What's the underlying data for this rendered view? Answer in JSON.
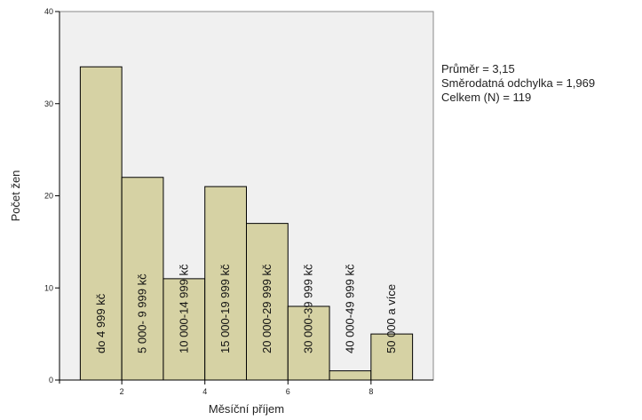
{
  "chart_data": {
    "type": "bar",
    "histogram": true,
    "xlabel": "Měsíční příjem",
    "ylabel": "Počet žen",
    "xlim": [
      0.5,
      9.5
    ],
    "ylim": [
      0,
      40
    ],
    "xticks": [
      "2",
      "4",
      "6",
      "8"
    ],
    "yticks": [
      "0",
      "10",
      "20",
      "30",
      "40"
    ],
    "categories": [
      "do 4 999 kč",
      "5 000- 9 999 kč",
      "10 000-14 999 kč",
      "15 000-19 999 kč",
      "20 000-29 999 kč",
      "30 000-39 999 kč",
      "40 000-49 999 kč",
      "50 000 a více"
    ],
    "bins": [
      [
        1,
        2
      ],
      [
        2,
        3
      ],
      [
        3,
        4
      ],
      [
        4,
        5
      ],
      [
        5,
        6
      ],
      [
        6,
        7
      ],
      [
        7,
        8
      ],
      [
        8,
        9
      ]
    ],
    "values": [
      34,
      22,
      11,
      21,
      17,
      8,
      1,
      5
    ],
    "grid": false,
    "colors": {
      "bar": "#d6d2a4",
      "plot_bg": "#f0f0f0",
      "stroke": "#000000"
    }
  },
  "stats": {
    "mean": "Průměr = 3,15",
    "std": "Směrodatná odchylka = 1,969",
    "n": "Celkem (N) = 119"
  }
}
